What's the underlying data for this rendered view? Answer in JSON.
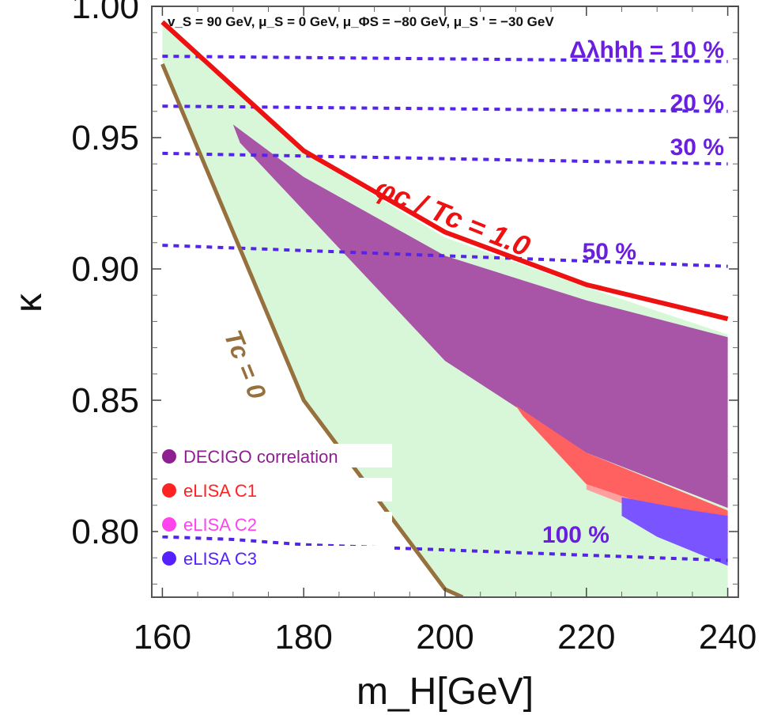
{
  "chart_data": {
    "type": "area",
    "annotation": "v_S = 90 GeV, μ_S = 0 GeV, μ_ΦS = −80 GeV, μ_S ' = −30 GeV",
    "xlabel": "m_H[GeV]",
    "ylabel": "κ",
    "xlim": [
      158.5,
      241.5
    ],
    "ylim": [
      0.775,
      1.0
    ],
    "x_ticks": [
      160,
      180,
      200,
      220,
      240
    ],
    "y_ticks": [
      0.8,
      0.85,
      0.9,
      0.95,
      1.0
    ],
    "x_tick_labels": [
      "160",
      "180",
      "200",
      "220",
      "240"
    ],
    "y_tick_labels": [
      "0.80",
      "0.85",
      "0.90",
      "0.95",
      "1.00"
    ],
    "grid": false,
    "legend": {
      "placement": "bottom-left",
      "entries": [
        {
          "label": "DECIGO correlation",
          "color": "#8e1f90"
        },
        {
          "label": "eLISA C1",
          "color": "#ff2222"
        },
        {
          "label": "eLISA C2",
          "color": "#ff44ee"
        },
        {
          "label": "eLISA C3",
          "color": "#5522ff"
        }
      ]
    },
    "regions": {
      "allowed_band": {
        "color": "#d8f7d8",
        "upper": [
          [
            160,
            0.994
          ],
          [
            180,
            0.944
          ],
          [
            200,
            0.912
          ],
          [
            220,
            0.893
          ],
          [
            240,
            0.875
          ]
        ],
        "lower": [
          [
            160,
            0.979
          ],
          [
            180,
            0.85
          ],
          [
            200,
            0.778
          ],
          [
            202.5,
            0.775
          ],
          [
            240,
            0.775
          ]
        ]
      },
      "decigo": {
        "color": "#a855a8",
        "upper": [
          [
            170,
            0.955
          ],
          [
            180,
            0.935
          ],
          [
            200,
            0.905
          ],
          [
            220,
            0.888
          ],
          [
            240,
            0.874
          ]
        ],
        "lower": [
          [
            171,
            0.948
          ],
          [
            200,
            0.865
          ],
          [
            220,
            0.83
          ],
          [
            240,
            0.809
          ]
        ]
      },
      "elisa_c1": {
        "color": "#ff6060",
        "upper": [
          [
            210,
            0.848
          ],
          [
            220,
            0.83
          ],
          [
            240,
            0.808
          ]
        ],
        "lower": [
          [
            211,
            0.844
          ],
          [
            220,
            0.818
          ],
          [
            240,
            0.8
          ]
        ]
      },
      "elisa_c2": {
        "color": "#ffa0a0",
        "upper": [
          [
            220,
            0.818
          ],
          [
            240,
            0.8
          ]
        ],
        "lower": [
          [
            220,
            0.816
          ],
          [
            240,
            0.795
          ]
        ]
      },
      "elisa_c3": {
        "color": "#7a55ff",
        "upper": [
          [
            225,
            0.813
          ],
          [
            235,
            0.808
          ],
          [
            240,
            0.806
          ]
        ],
        "lower": [
          [
            225,
            0.806
          ],
          [
            230,
            0.798
          ],
          [
            240,
            0.787
          ]
        ]
      }
    },
    "curves": [
      {
        "label": "φc / Tc = 1.0",
        "color": "#ee1111",
        "points": [
          [
            160,
            0.994
          ],
          [
            180,
            0.945
          ],
          [
            200,
            0.914
          ],
          [
            220,
            0.894
          ],
          [
            240,
            0.881
          ]
        ]
      },
      {
        "label": "Tc = 0",
        "color": "#96703d",
        "points": [
          [
            160,
            0.978
          ],
          [
            180,
            0.85
          ],
          [
            200,
            0.778
          ],
          [
            202.5,
            0.775
          ]
        ]
      }
    ],
    "contours": {
      "name": "Δλhhh",
      "color": "#5522ee",
      "lines": [
        {
          "label": "Δλhhh = 10 %",
          "points": [
            [
              160,
              0.981
            ],
            [
              200,
              0.98
            ],
            [
              240,
              0.979
            ]
          ]
        },
        {
          "label": "20 %",
          "points": [
            [
              160,
              0.962
            ],
            [
              200,
              0.961
            ],
            [
              240,
              0.96
            ]
          ]
        },
        {
          "label": "30 %",
          "points": [
            [
              160,
              0.944
            ],
            [
              200,
              0.942
            ],
            [
              240,
              0.94
            ]
          ]
        },
        {
          "label": "50 %",
          "points": [
            [
              160,
              0.909
            ],
            [
              200,
              0.905
            ],
            [
              240,
              0.901
            ]
          ]
        },
        {
          "label": "100 %",
          "points": [
            [
              160,
              0.798
            ],
            [
              170,
              0.797
            ],
            [
              180,
              0.795
            ],
            [
              200,
              0.793
            ],
            [
              220,
              0.791
            ],
            [
              240,
              0.789
            ]
          ]
        }
      ]
    }
  }
}
